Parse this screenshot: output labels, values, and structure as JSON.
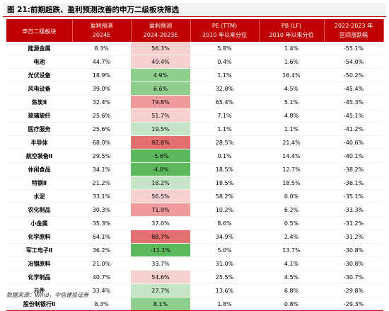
{
  "title": "图 21:前期超跌、盈利预测改善的申万二级板块筛选",
  "headers": {
    "industry": "申万二级板块",
    "profit_forecast_line1": "盈利预测",
    "profit_forecast_line2": "2024E",
    "profit_change_line1": "盈利预测",
    "profit_change_line2": "2024-2023E",
    "pe_line1": "PE (TTM)",
    "pe_line2": "2010 年以来分位",
    "pb_line1": "PB (LF)",
    "pb_line2": "2010 年以来分位",
    "return_line1": "2022-2023 年",
    "return_line2": "区间涨跌幅"
  },
  "colors": {
    "header_bg": "#c00000",
    "positive_strong": "#e4706f",
    "positive_medium": "#ef9b9b",
    "positive_light": "#f7cfcf",
    "negative_strong": "#5cb85c",
    "negative_medium": "#8ecf8e",
    "negative_light": "#c6e5c6"
  },
  "rows": [
    {
      "name": "能源金属",
      "profit_2024e": "8.3%",
      "change": "56.3%",
      "change_level": "positive_light",
      "pe_pct": "5.8%",
      "pb_pct": "1.4%",
      "return": "-55.1%"
    },
    {
      "name": "电池",
      "profit_2024e": "44.7%",
      "change": "49.4%",
      "change_level": "positive_light",
      "pe_pct": "0.4%",
      "pb_pct": "1.6%",
      "return": "-54.0%"
    },
    {
      "name": "光伏设备",
      "profit_2024e": "18.9%",
      "change": "4.9%",
      "change_level": "negative_medium",
      "pe_pct": "1.1%",
      "pb_pct": "16.4%",
      "return": "-50.2%"
    },
    {
      "name": "风电设备",
      "profit_2024e": "39.0%",
      "change": "6.6%",
      "change_level": "negative_medium",
      "pe_pct": "32.8%",
      "pb_pct": "4.5%",
      "return": "-45.4%"
    },
    {
      "name": "焦炭Ⅱ",
      "profit_2024e": "32.4%",
      "change": "79.8%",
      "change_level": "positive_medium",
      "pe_pct": "65.4%",
      "pb_pct": "5.1%",
      "return": "-45.3%"
    },
    {
      "name": "玻璃玻纤",
      "profit_2024e": "25.6%",
      "change": "51.7%",
      "change_level": "positive_light",
      "pe_pct": "7.1%",
      "pb_pct": "4.8%",
      "return": "-45.1%"
    },
    {
      "name": "医疗服务",
      "profit_2024e": "25.6%",
      "change": "19.5%",
      "change_level": "negative_light",
      "pe_pct": "1.1%",
      "pb_pct": "1.1%",
      "return": "-41.2%"
    },
    {
      "name": "半导体",
      "profit_2024e": "68.0%",
      "change": "92.6%",
      "change_level": "positive_strong",
      "pe_pct": "28.5%",
      "pb_pct": "21.4%",
      "return": "-40.6%"
    },
    {
      "name": "航空装备Ⅱ",
      "profit_2024e": "29.5%",
      "change": "-5.6%",
      "change_level": "negative_strong",
      "pe_pct": "0.1%",
      "pb_pct": "14.4%",
      "return": "-40.1%"
    },
    {
      "name": "休闲食品",
      "profit_2024e": "34.1%",
      "change": "-4.0%",
      "change_level": "negative_strong",
      "pe_pct": "18.5%",
      "pb_pct": "12.7%",
      "return": "-38.2%"
    },
    {
      "name": "特钢Ⅱ",
      "profit_2024e": "21.2%",
      "change": "18.2%",
      "change_level": "negative_light",
      "pe_pct": "18.5%",
      "pb_pct": "18.5%",
      "return": "-36.1%"
    },
    {
      "name": "水泥",
      "profit_2024e": "33.1%",
      "change": "56.5%",
      "change_level": "positive_light",
      "pe_pct": "58.2%",
      "pb_pct": "0.0%",
      "return": "-35.1%"
    },
    {
      "name": "农化制品",
      "profit_2024e": "30.3%",
      "change": "71.9%",
      "change_level": "positive_medium",
      "pe_pct": "10.2%",
      "pb_pct": "6.2%",
      "return": "-33.3%"
    },
    {
      "name": "小金属",
      "profit_2024e": "35.3%",
      "change": "37.0%",
      "change_level": "neutral",
      "pe_pct": "8.6%",
      "pb_pct": "0.5%",
      "return": "-31.2%"
    },
    {
      "name": "化学原料",
      "profit_2024e": "64.1%",
      "change": "88.7%",
      "change_level": "positive_strong",
      "pe_pct": "34.9%",
      "pb_pct": "2.4%",
      "return": "-31.2%"
    },
    {
      "name": "军工电子Ⅱ",
      "profit_2024e": "36.2%",
      "change": "-11.1%",
      "change_level": "negative_strong",
      "pe_pct": "5.0%",
      "pb_pct": "13.7%",
      "return": "-30.8%"
    },
    {
      "name": "冶钢原料",
      "profit_2024e": "21.0%",
      "change": "33.7%",
      "change_level": "neutral",
      "pe_pct": "31.0%",
      "pb_pct": "4.1%",
      "return": "-30.8%"
    },
    {
      "name": "化学制品",
      "profit_2024e": "40.7%",
      "change": "54.6%",
      "change_level": "positive_light",
      "pe_pct": "25.5%",
      "pb_pct": "4.5%",
      "return": "-30.7%"
    },
    {
      "name": "元件",
      "profit_2024e": "33.4%",
      "change": "27.7%",
      "change_level": "negative_light",
      "pe_pct": "13.6%",
      "pb_pct": "6.8%",
      "return": "-29.8%"
    },
    {
      "name": "股份制银行Ⅱ",
      "profit_2024e": "8.3%",
      "change": "8.1%",
      "change_level": "negative_medium",
      "pe_pct": "1.8%",
      "pb_pct": "0.8%",
      "return": "-29.3%"
    }
  ],
  "footer": "数据来源：Wind，中信建投证券"
}
